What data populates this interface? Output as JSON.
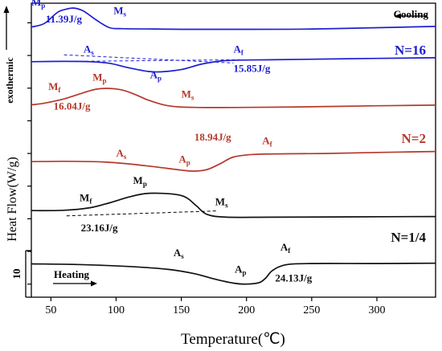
{
  "chart_data": {
    "type": "line",
    "xlabel": "Temperature(℃)",
    "ylabel": "Heat Flow(W/g)",
    "exo_label": "exothermic",
    "scale_bar_value": "10",
    "xlim": [
      35,
      345
    ],
    "x_ticks": [
      50,
      100,
      150,
      200,
      250,
      300
    ],
    "grid": false,
    "cooling_arrow_label": "Cooling",
    "heating_arrow_label": "Heating",
    "series": [
      {
        "name": "N=16",
        "label": "N=16",
        "mode": "Cooling",
        "color": "#1f1fd1",
        "x": [
          35,
          45,
          55,
          62,
          68,
          75,
          85,
          95,
          105,
          130,
          160,
          200,
          250,
          300,
          345
        ],
        "y": [
          14.35,
          14.9,
          16.6,
          17.1,
          17.25,
          16.8,
          15.4,
          14.25,
          14.1,
          14.05,
          14.0,
          14.0,
          14.05,
          14.25,
          14.45
        ],
        "peak_labels": [
          {
            "text": "Mp",
            "main": "M",
            "sub": "p",
            "x": 35,
            "y": 17.65
          },
          {
            "text": "Ms",
            "main": "M",
            "sub": "s",
            "x": 98,
            "y": 16.35
          },
          {
            "text": "11.39J/g",
            "x": 46,
            "y": 15.05
          }
        ]
      },
      {
        "name": "N=16 heating",
        "label": "",
        "mode": "Heating",
        "color": "#1f1fd1",
        "x": [
          35,
          60,
          80,
          95,
          110,
          125,
          135,
          150,
          165,
          180,
          195,
          220,
          260,
          300,
          345
        ],
        "y": [
          9.05,
          9.1,
          9.05,
          8.8,
          8.1,
          7.55,
          7.5,
          7.85,
          8.65,
          9.15,
          9.3,
          9.35,
          9.45,
          9.55,
          9.65
        ],
        "baseline": {
          "x": [
            60,
            190
          ],
          "y": [
            10.1,
            8.85
          ]
        },
        "baseline2": {
          "x": [
            68,
            195
          ],
          "y": [
            9.1,
            9.35
          ]
        },
        "peak_labels": [
          {
            "text": "As",
            "main": "A",
            "sub": "s",
            "x": 75,
            "y": 10.45
          },
          {
            "text": "Af",
            "main": "A",
            "sub": "f",
            "x": 190,
            "y": 10.45
          },
          {
            "text": "Ap",
            "main": "A",
            "sub": "p",
            "x": 126,
            "y": 6.5
          },
          {
            "text": "15.85J/g",
            "x": 190,
            "y": 7.5
          }
        ]
      },
      {
        "name": "N=2",
        "label": "N=2",
        "mode": "Cooling",
        "color": "#b5392c",
        "x": [
          35,
          45,
          60,
          75,
          85,
          95,
          105,
          115,
          125,
          140,
          160,
          200,
          250,
          300,
          345
        ],
        "y": [
          2.45,
          2.7,
          3.35,
          4.3,
          4.85,
          4.95,
          4.7,
          4.0,
          3.15,
          2.3,
          2.05,
          2.05,
          2.15,
          2.3,
          2.4
        ],
        "peak_labels": [
          {
            "text": "Mf",
            "main": "M",
            "sub": "f",
            "x": 48,
            "y": 4.75
          },
          {
            "text": "Mp",
            "main": "M",
            "sub": "p",
            "x": 82,
            "y": 6.15
          },
          {
            "text": "Ms",
            "main": "M",
            "sub": "s",
            "x": 150,
            "y": 3.55
          },
          {
            "text": "16.04J/g",
            "x": 52,
            "y": 1.7
          }
        ]
      },
      {
        "name": "N=2 heating",
        "label": "",
        "mode": "Heating",
        "color": "#b5392c",
        "x": [
          35,
          60,
          90,
          110,
          130,
          150,
          160,
          170,
          180,
          190,
          205,
          230,
          260,
          300,
          345
        ],
        "y": [
          -6.25,
          -6.2,
          -6.3,
          -6.6,
          -7.05,
          -7.55,
          -7.7,
          -7.45,
          -6.55,
          -5.55,
          -5.15,
          -5.05,
          -5.0,
          -4.85,
          -4.7
        ],
        "peak_labels": [
          {
            "text": "As",
            "main": "A",
            "sub": "s",
            "x": 100,
            "y": -5.5
          },
          {
            "text": "Ap",
            "main": "A",
            "sub": "p",
            "x": 148,
            "y": -6.4
          },
          {
            "text": "Af",
            "main": "A",
            "sub": "f",
            "x": 212,
            "y": -3.6
          },
          {
            "text": "18.94J/g",
            "x": 160,
            "y": -3.05
          }
        ]
      },
      {
        "name": "N=1/4",
        "label": "N=1/4",
        "mode": "Cooling",
        "color": "#111111",
        "x": [
          35,
          60,
          80,
          95,
          110,
          122,
          135,
          148,
          155,
          162,
          170,
          185,
          220,
          280,
          345
        ],
        "y": [
          -13.75,
          -13.7,
          -13.3,
          -12.55,
          -11.65,
          -11.15,
          -11.1,
          -11.35,
          -11.9,
          -13.1,
          -14.35,
          -14.75,
          -14.75,
          -14.7,
          -14.65
        ],
        "baseline": {
          "x": [
            62,
            177
          ],
          "y": [
            -14.55,
            -13.8
          ]
        },
        "peak_labels": [
          {
            "text": "Mf",
            "main": "M",
            "sub": "f",
            "x": 72,
            "y": -12.3
          },
          {
            "text": "Mp",
            "main": "M",
            "sub": "p",
            "x": 113,
            "y": -9.65
          },
          {
            "text": "Ms",
            "main": "M",
            "sub": "s",
            "x": 176,
            "y": -12.9
          },
          {
            "text": "23.16J/g",
            "x": 73,
            "y": -16.9
          }
        ]
      },
      {
        "name": "N=1/4 heating",
        "label": "",
        "mode": "Heating",
        "color": "#111111",
        "x": [
          35,
          70,
          110,
          140,
          160,
          175,
          190,
          200,
          210,
          215,
          220,
          230,
          250,
          300,
          345
        ],
        "y": [
          -21.9,
          -22.0,
          -22.3,
          -22.75,
          -23.4,
          -24.2,
          -24.85,
          -25.0,
          -24.75,
          -24.0,
          -22.9,
          -22.05,
          -21.85,
          -21.85,
          -21.8
        ],
        "peak_labels": [
          {
            "text": "As",
            "main": "A",
            "sub": "s",
            "x": 144,
            "y": -20.75
          },
          {
            "text": "Ap",
            "main": "A",
            "sub": "p",
            "x": 191,
            "y": -23.25
          },
          {
            "text": "Af",
            "main": "A",
            "sub": "f",
            "x": 226,
            "y": -19.85
          },
          {
            "text": "24.13J/g",
            "x": 222,
            "y": -24.6
          }
        ]
      }
    ]
  }
}
